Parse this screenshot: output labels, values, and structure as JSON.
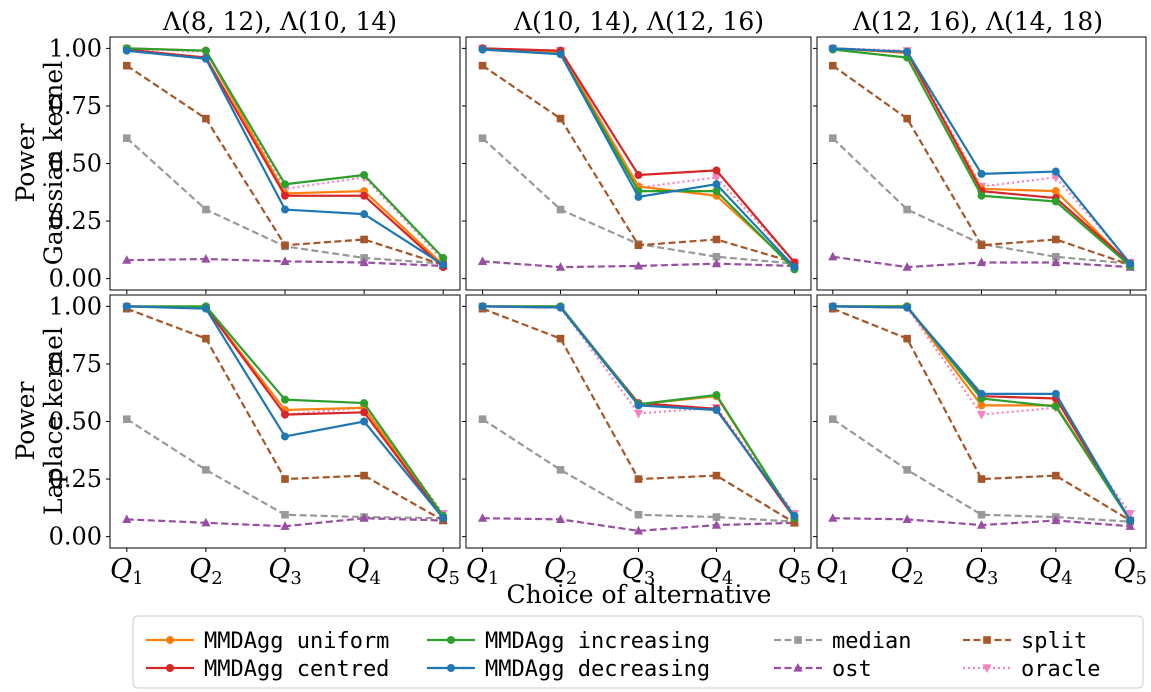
{
  "figure": {
    "xlabel": "Choice of alternative",
    "ylabel_rows": [
      {
        "line1": "Power",
        "line2": "Gaussian kernel"
      },
      {
        "line1": "Power",
        "line2": "Laplace kernel"
      }
    ],
    "column_titles": [
      "Λ(8, 12), Λ(10, 14)",
      "Λ(10, 14), Λ(12, 16)",
      "Λ(12, 16), Λ(14, 18)"
    ],
    "x_ticks": [
      {
        "base": "Q",
        "sub": "1"
      },
      {
        "base": "Q",
        "sub": "2"
      },
      {
        "base": "Q",
        "sub": "3"
      },
      {
        "base": "Q",
        "sub": "4"
      },
      {
        "base": "Q",
        "sub": "5"
      }
    ],
    "y_ticks": [
      "0.00",
      "0.25",
      "0.50",
      "0.75",
      "1.00"
    ]
  },
  "legend": {
    "placement": "bottom-center",
    "entries": [
      {
        "key": "uniform",
        "label": "MMDAgg uniform"
      },
      {
        "key": "centred",
        "label": "MMDAgg centred"
      },
      {
        "key": "increasing",
        "label": "MMDAgg increasing"
      },
      {
        "key": "decreasing",
        "label": "MMDAgg decreasing"
      },
      {
        "key": "median",
        "label": "median"
      },
      {
        "key": "ost",
        "label": "ost"
      },
      {
        "key": "split",
        "label": "split"
      },
      {
        "key": "oracle",
        "label": "oracle"
      }
    ]
  },
  "styles": {
    "uniform": {
      "color": "#ff7f0e",
      "dash": "solid",
      "marker": "circle"
    },
    "centred": {
      "color": "#d62728",
      "dash": "solid",
      "marker": "circle"
    },
    "increasing": {
      "color": "#2ca02c",
      "dash": "solid",
      "marker": "circle"
    },
    "decreasing": {
      "color": "#1f77b4",
      "dash": "solid",
      "marker": "circle"
    },
    "median": {
      "color": "#999999",
      "dash": "dashed",
      "marker": "square"
    },
    "ost": {
      "color": "#984ea3",
      "dash": "dashed",
      "marker": "triangle-up"
    },
    "split": {
      "color": "#a65628",
      "dash": "dashed",
      "marker": "square"
    },
    "oracle": {
      "color": "#f781bf",
      "dash": "dotted",
      "marker": "triangle-down"
    }
  },
  "chart_data": [
    {
      "type": "line",
      "row": 0,
      "col": 0,
      "ylim": [
        0,
        1
      ],
      "categories": [
        "Q1",
        "Q2",
        "Q3",
        "Q4",
        "Q5"
      ],
      "series": [
        {
          "key": "uniform",
          "values": [
            1.0,
            0.99,
            0.37,
            0.38,
            0.06
          ]
        },
        {
          "key": "centred",
          "values": [
            0.995,
            0.96,
            0.36,
            0.36,
            0.05
          ]
        },
        {
          "key": "increasing",
          "values": [
            1.0,
            0.99,
            0.41,
            0.45,
            0.09
          ]
        },
        {
          "key": "decreasing",
          "values": [
            0.99,
            0.955,
            0.3,
            0.28,
            0.06
          ]
        },
        {
          "key": "median",
          "values": [
            0.61,
            0.3,
            0.14,
            0.09,
            0.065
          ]
        },
        {
          "key": "ost",
          "values": [
            0.08,
            0.085,
            0.075,
            0.07,
            0.055
          ]
        },
        {
          "key": "split",
          "values": [
            0.925,
            0.695,
            0.145,
            0.17,
            0.06
          ]
        },
        {
          "key": "oracle",
          "values": [
            1.0,
            0.985,
            0.39,
            0.44,
            0.08
          ]
        }
      ]
    },
    {
      "type": "line",
      "row": 0,
      "col": 1,
      "ylim": [
        0,
        1
      ],
      "categories": [
        "Q1",
        "Q2",
        "Q3",
        "Q4",
        "Q5"
      ],
      "series": [
        {
          "key": "uniform",
          "values": [
            1.0,
            0.985,
            0.4,
            0.36,
            0.05
          ]
        },
        {
          "key": "centred",
          "values": [
            1.0,
            0.99,
            0.45,
            0.47,
            0.07
          ]
        },
        {
          "key": "increasing",
          "values": [
            0.995,
            0.975,
            0.38,
            0.38,
            0.04
          ]
        },
        {
          "key": "decreasing",
          "values": [
            0.995,
            0.975,
            0.355,
            0.41,
            0.05
          ]
        },
        {
          "key": "median",
          "values": [
            0.61,
            0.3,
            0.15,
            0.095,
            0.065
          ]
        },
        {
          "key": "ost",
          "values": [
            0.075,
            0.05,
            0.055,
            0.065,
            0.055
          ]
        },
        {
          "key": "split",
          "values": [
            0.925,
            0.695,
            0.145,
            0.17,
            0.07
          ]
        },
        {
          "key": "oracle",
          "values": [
            1.0,
            0.99,
            0.395,
            0.44,
            0.07
          ]
        }
      ]
    },
    {
      "type": "line",
      "row": 0,
      "col": 2,
      "ylim": [
        0,
        1
      ],
      "categories": [
        "Q1",
        "Q2",
        "Q3",
        "Q4",
        "Q5"
      ],
      "series": [
        {
          "key": "uniform",
          "values": [
            1.0,
            0.98,
            0.39,
            0.38,
            0.06
          ]
        },
        {
          "key": "centred",
          "values": [
            1.0,
            0.985,
            0.38,
            0.35,
            0.065
          ]
        },
        {
          "key": "increasing",
          "values": [
            0.995,
            0.96,
            0.36,
            0.335,
            0.055
          ]
        },
        {
          "key": "decreasing",
          "values": [
            1.0,
            0.985,
            0.455,
            0.465,
            0.065
          ]
        },
        {
          "key": "median",
          "values": [
            0.61,
            0.3,
            0.15,
            0.095,
            0.065
          ]
        },
        {
          "key": "ost",
          "values": [
            0.095,
            0.05,
            0.07,
            0.07,
            0.05
          ]
        },
        {
          "key": "split",
          "values": [
            0.925,
            0.695,
            0.145,
            0.17,
            0.06
          ]
        },
        {
          "key": "oracle",
          "values": [
            1.0,
            0.99,
            0.4,
            0.44,
            0.07
          ]
        }
      ]
    },
    {
      "type": "line",
      "row": 1,
      "col": 0,
      "ylim": [
        0,
        1
      ],
      "categories": [
        "Q1",
        "Q2",
        "Q3",
        "Q4",
        "Q5"
      ],
      "series": [
        {
          "key": "uniform",
          "values": [
            1.0,
            0.995,
            0.55,
            0.56,
            0.08
          ]
        },
        {
          "key": "centred",
          "values": [
            1.0,
            0.995,
            0.53,
            0.54,
            0.08
          ]
        },
        {
          "key": "increasing",
          "values": [
            1.0,
            1.0,
            0.595,
            0.58,
            0.09
          ]
        },
        {
          "key": "decreasing",
          "values": [
            1.0,
            0.99,
            0.435,
            0.5,
            0.08
          ]
        },
        {
          "key": "median",
          "values": [
            0.51,
            0.29,
            0.095,
            0.085,
            0.08
          ]
        },
        {
          "key": "ost",
          "values": [
            0.075,
            0.06,
            0.045,
            0.08,
            0.07
          ]
        },
        {
          "key": "split",
          "values": [
            0.99,
            0.86,
            0.25,
            0.265,
            0.07
          ]
        },
        {
          "key": "oracle",
          "values": [
            1.0,
            0.995,
            0.53,
            0.56,
            0.1
          ]
        }
      ]
    },
    {
      "type": "line",
      "row": 1,
      "col": 1,
      "ylim": [
        0,
        1
      ],
      "categories": [
        "Q1",
        "Q2",
        "Q3",
        "Q4",
        "Q5"
      ],
      "series": [
        {
          "key": "uniform",
          "values": [
            1.0,
            1.0,
            0.575,
            0.61,
            0.08
          ]
        },
        {
          "key": "centred",
          "values": [
            1.0,
            0.995,
            0.58,
            0.555,
            0.08
          ]
        },
        {
          "key": "increasing",
          "values": [
            1.0,
            1.0,
            0.575,
            0.615,
            0.08
          ]
        },
        {
          "key": "decreasing",
          "values": [
            1.0,
            0.995,
            0.57,
            0.55,
            0.09
          ]
        },
        {
          "key": "median",
          "values": [
            0.51,
            0.29,
            0.095,
            0.085,
            0.065
          ]
        },
        {
          "key": "ost",
          "values": [
            0.08,
            0.075,
            0.025,
            0.05,
            0.06
          ]
        },
        {
          "key": "split",
          "values": [
            0.99,
            0.86,
            0.25,
            0.265,
            0.06
          ]
        },
        {
          "key": "oracle",
          "values": [
            1.0,
            0.995,
            0.535,
            0.56,
            0.1
          ]
        }
      ]
    },
    {
      "type": "line",
      "row": 1,
      "col": 2,
      "ylim": [
        0,
        1
      ],
      "categories": [
        "Q1",
        "Q2",
        "Q3",
        "Q4",
        "Q5"
      ],
      "series": [
        {
          "key": "uniform",
          "values": [
            1.0,
            1.0,
            0.57,
            0.57,
            0.07
          ]
        },
        {
          "key": "centred",
          "values": [
            1.0,
            0.995,
            0.61,
            0.6,
            0.07
          ]
        },
        {
          "key": "increasing",
          "values": [
            1.0,
            1.0,
            0.6,
            0.565,
            0.07
          ]
        },
        {
          "key": "decreasing",
          "values": [
            1.0,
            0.995,
            0.62,
            0.62,
            0.07
          ]
        },
        {
          "key": "median",
          "values": [
            0.51,
            0.29,
            0.095,
            0.085,
            0.065
          ]
        },
        {
          "key": "ost",
          "values": [
            0.08,
            0.075,
            0.05,
            0.07,
            0.045
          ]
        },
        {
          "key": "split",
          "values": [
            0.99,
            0.86,
            0.25,
            0.265,
            0.07
          ]
        },
        {
          "key": "oracle",
          "values": [
            1.0,
            0.995,
            0.53,
            0.56,
            0.1
          ]
        }
      ]
    }
  ]
}
